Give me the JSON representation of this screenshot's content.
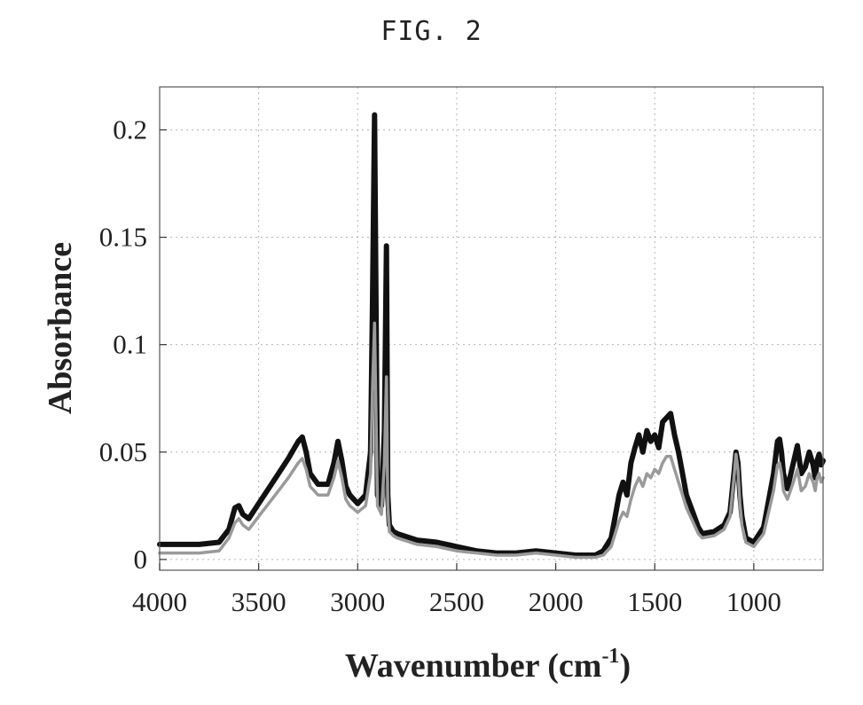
{
  "figure_label": "FIG. 2",
  "chart_data": {
    "type": "line",
    "title": "",
    "xlabel": "Wavenumber (cm",
    "xlabel_superscript": "-1",
    "xlabel_suffix": ")",
    "ylabel": "Absorbance",
    "xlim": [
      4000,
      650
    ],
    "ylim": [
      -0.005,
      0.22
    ],
    "x_reversed": true,
    "grid": true,
    "legend": "none",
    "xticks": [
      {
        "value": 4000,
        "label": "4000"
      },
      {
        "value": 3500,
        "label": "3500"
      },
      {
        "value": 3000,
        "label": "3000"
      },
      {
        "value": 2500,
        "label": "2500"
      },
      {
        "value": 2000,
        "label": "2000"
      },
      {
        "value": 1500,
        "label": "1500"
      },
      {
        "value": 1000,
        "label": "1000"
      }
    ],
    "yticks": [
      {
        "value": 0,
        "label": "0"
      },
      {
        "value": 0.05,
        "label": "0.05"
      },
      {
        "value": 0.1,
        "label": "0.1"
      },
      {
        "value": 0.15,
        "label": "0.15"
      },
      {
        "value": 0.2,
        "label": "0.2"
      }
    ],
    "colors": {
      "dark": "#111111",
      "light": "#9a9a9a",
      "grid": "#b5b5b5"
    },
    "series": [
      {
        "color": "#111111",
        "x": [
          4000,
          3900,
          3800,
          3700,
          3650,
          3620,
          3600,
          3580,
          3550,
          3500,
          3450,
          3400,
          3350,
          3300,
          3280,
          3260,
          3240,
          3200,
          3150,
          3120,
          3100,
          3080,
          3060,
          3040,
          3000,
          2960,
          2935,
          2925,
          2915,
          2900,
          2880,
          2865,
          2855,
          2848,
          2840,
          2820,
          2800,
          2700,
          2600,
          2500,
          2400,
          2300,
          2200,
          2100,
          2000,
          1900,
          1800,
          1760,
          1720,
          1700,
          1680,
          1660,
          1640,
          1620,
          1600,
          1580,
          1560,
          1540,
          1520,
          1500,
          1480,
          1460,
          1440,
          1420,
          1400,
          1380,
          1360,
          1340,
          1320,
          1300,
          1280,
          1260,
          1200,
          1150,
          1120,
          1100,
          1090,
          1080,
          1070,
          1060,
          1040,
          1000,
          950,
          900,
          880,
          870,
          860,
          850,
          830,
          800,
          780,
          760,
          740,
          720,
          700,
          690,
          680,
          670,
          660,
          650
        ],
        "y": [
          0.007,
          0.007,
          0.007,
          0.008,
          0.014,
          0.024,
          0.025,
          0.021,
          0.019,
          0.026,
          0.033,
          0.04,
          0.047,
          0.055,
          0.057,
          0.05,
          0.04,
          0.035,
          0.035,
          0.045,
          0.055,
          0.046,
          0.034,
          0.03,
          0.026,
          0.03,
          0.05,
          0.12,
          0.207,
          0.03,
          0.025,
          0.06,
          0.146,
          0.03,
          0.016,
          0.013,
          0.012,
          0.009,
          0.008,
          0.006,
          0.004,
          0.003,
          0.003,
          0.004,
          0.003,
          0.002,
          0.002,
          0.004,
          0.01,
          0.02,
          0.03,
          0.036,
          0.03,
          0.045,
          0.052,
          0.058,
          0.05,
          0.06,
          0.055,
          0.058,
          0.052,
          0.064,
          0.066,
          0.068,
          0.058,
          0.05,
          0.04,
          0.03,
          0.025,
          0.02,
          0.015,
          0.012,
          0.013,
          0.016,
          0.022,
          0.04,
          0.05,
          0.045,
          0.03,
          0.02,
          0.01,
          0.008,
          0.015,
          0.04,
          0.055,
          0.056,
          0.05,
          0.04,
          0.033,
          0.045,
          0.053,
          0.04,
          0.043,
          0.05,
          0.044,
          0.038,
          0.046,
          0.049,
          0.044,
          0.046
        ]
      },
      {
        "color": "#9a9a9a",
        "x": [
          4000,
          3900,
          3800,
          3700,
          3650,
          3620,
          3600,
          3580,
          3550,
          3500,
          3450,
          3400,
          3350,
          3300,
          3280,
          3260,
          3240,
          3200,
          3150,
          3120,
          3100,
          3080,
          3060,
          3040,
          3000,
          2960,
          2935,
          2925,
          2915,
          2900,
          2880,
          2865,
          2855,
          2848,
          2840,
          2820,
          2800,
          2700,
          2600,
          2500,
          2400,
          2300,
          2200,
          2100,
          2000,
          1900,
          1800,
          1760,
          1720,
          1700,
          1680,
          1660,
          1640,
          1620,
          1600,
          1580,
          1560,
          1540,
          1520,
          1500,
          1480,
          1460,
          1440,
          1420,
          1400,
          1380,
          1360,
          1340,
          1320,
          1300,
          1280,
          1260,
          1200,
          1150,
          1120,
          1100,
          1090,
          1080,
          1070,
          1060,
          1040,
          1000,
          950,
          900,
          880,
          870,
          860,
          850,
          830,
          800,
          780,
          760,
          740,
          720,
          700,
          690,
          680,
          670,
          660,
          650
        ],
        "y": [
          0.003,
          0.003,
          0.003,
          0.004,
          0.01,
          0.017,
          0.019,
          0.016,
          0.014,
          0.02,
          0.026,
          0.032,
          0.038,
          0.045,
          0.047,
          0.042,
          0.034,
          0.03,
          0.03,
          0.038,
          0.046,
          0.038,
          0.028,
          0.025,
          0.022,
          0.025,
          0.04,
          0.08,
          0.11,
          0.025,
          0.021,
          0.045,
          0.085,
          0.025,
          0.013,
          0.011,
          0.01,
          0.007,
          0.006,
          0.004,
          0.003,
          0.002,
          0.002,
          0.003,
          0.002,
          0.001,
          0.001,
          0.002,
          0.006,
          0.012,
          0.018,
          0.022,
          0.02,
          0.028,
          0.034,
          0.038,
          0.034,
          0.04,
          0.038,
          0.042,
          0.04,
          0.045,
          0.048,
          0.048,
          0.042,
          0.036,
          0.03,
          0.024,
          0.02,
          0.016,
          0.012,
          0.01,
          0.011,
          0.014,
          0.02,
          0.038,
          0.049,
          0.042,
          0.026,
          0.016,
          0.008,
          0.006,
          0.012,
          0.032,
          0.044,
          0.045,
          0.04,
          0.032,
          0.028,
          0.036,
          0.042,
          0.032,
          0.034,
          0.04,
          0.036,
          0.032,
          0.038,
          0.04,
          0.036,
          0.038
        ]
      }
    ]
  }
}
